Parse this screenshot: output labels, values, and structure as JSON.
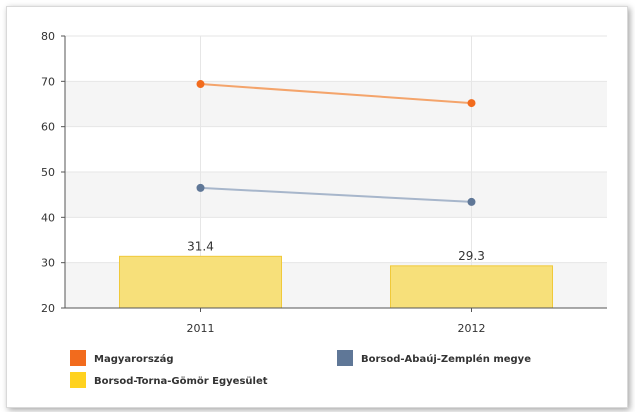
{
  "chart_data": {
    "type": "bar",
    "categories": [
      "2011",
      "2012"
    ],
    "ylim": [
      20,
      80
    ],
    "yticks": [
      "20",
      "30",
      "40",
      "50",
      "60",
      "70",
      "80"
    ],
    "grid": true,
    "legend_position": "bottom",
    "series": [
      {
        "name": "Borsod-Torna-Gömör Egyesület",
        "type": "bar",
        "values": [
          31.4,
          29.3
        ],
        "labels": [
          "31.4",
          "29.3"
        ],
        "color": "#f7e07a"
      },
      {
        "name": "Magyarország",
        "type": "line",
        "values": [
          69.4,
          65.2
        ],
        "color": "#f4a46b",
        "marker": "#f26b1d"
      },
      {
        "name": "Borsod-Abaúj-Zemplén megye",
        "type": "line",
        "values": [
          46.5,
          43.4
        ],
        "color": "#a7b6cb",
        "marker": "#5f7797"
      }
    ],
    "legend": [
      {
        "label": "Magyarország",
        "color": "#f26b1d"
      },
      {
        "label": "Borsod-Abaúj-Zemplén megye",
        "color": "#5f7797"
      },
      {
        "label": "Borsod-Torna-Gömör Egyesület",
        "color": "#ffd21f"
      }
    ]
  }
}
